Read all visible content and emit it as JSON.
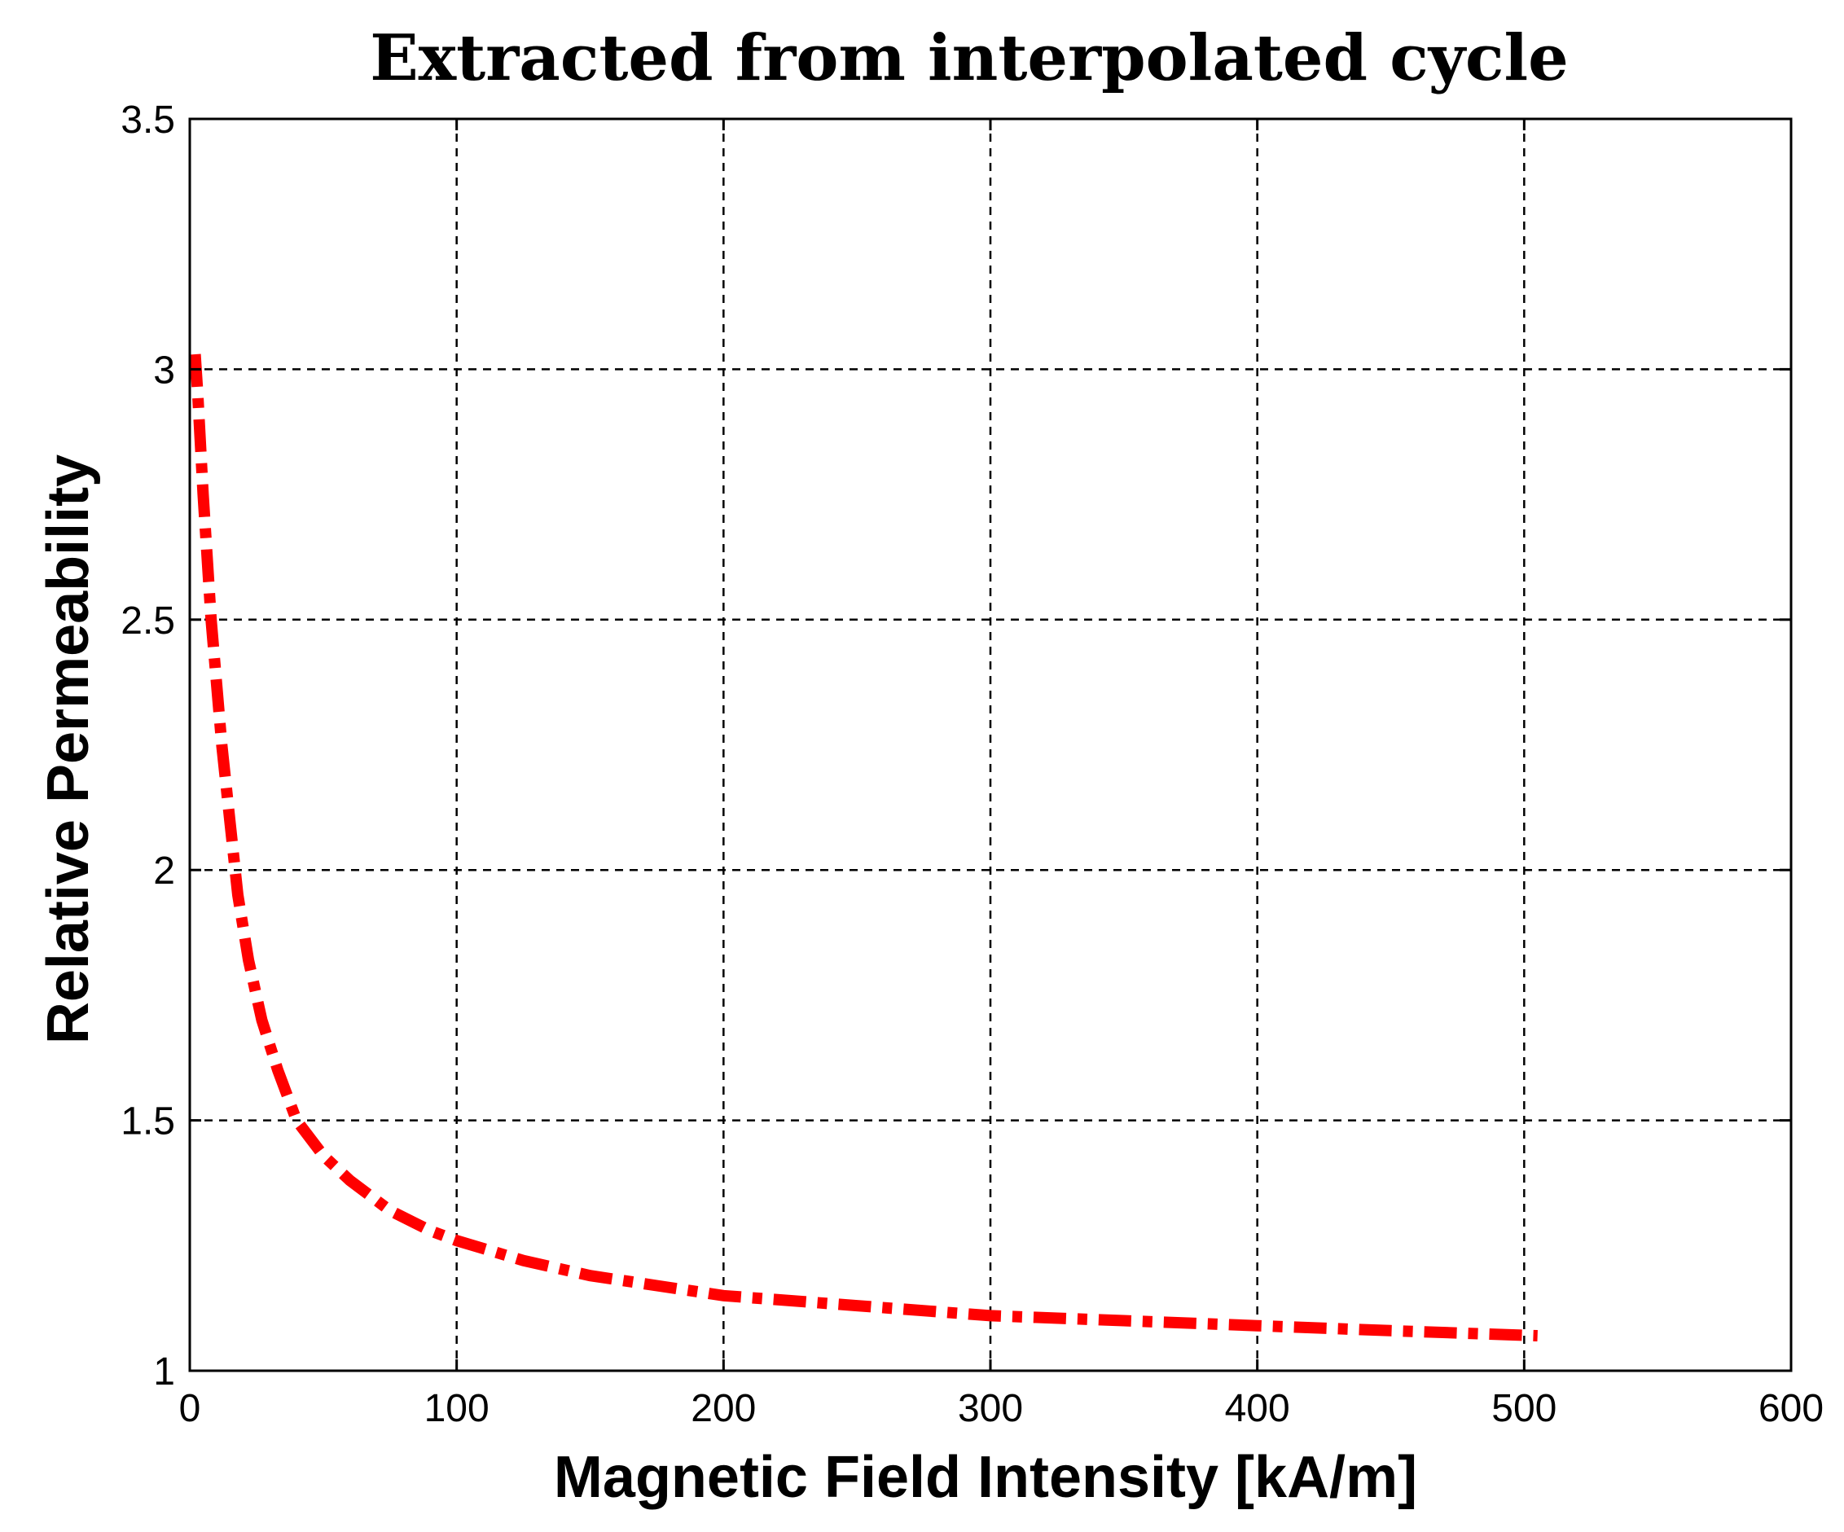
{
  "chart_data": {
    "type": "line",
    "title": "Extracted from interpolated cycle",
    "xlabel": "Magnetic Field Intensity [kA/m]",
    "ylabel": "Relative Permeability",
    "xlim": [
      0,
      600
    ],
    "ylim": [
      1,
      3.5
    ],
    "grid": true,
    "x_ticks": [
      0,
      100,
      200,
      300,
      400,
      500,
      600
    ],
    "y_ticks": [
      1,
      1.5,
      2,
      2.5,
      3,
      3.5
    ],
    "x_tick_labels": [
      "0",
      "100",
      "200",
      "300",
      "400",
      "500",
      "600"
    ],
    "y_tick_labels": [
      "1",
      "1.5",
      "2",
      "2.5",
      "3",
      "3.5"
    ],
    "series": [
      {
        "name": "relative permeability",
        "color": "#ff0000",
        "line_style": "dash-dot",
        "x": [
          2,
          3,
          5,
          8,
          12,
          15,
          18,
          22,
          27,
          33,
          40,
          50,
          60,
          75,
          90,
          100,
          125,
          150,
          175,
          200,
          250,
          300,
          350,
          400,
          450,
          505
        ],
        "y": [
          3.03,
          2.95,
          2.75,
          2.5,
          2.25,
          2.1,
          1.95,
          1.82,
          1.7,
          1.6,
          1.5,
          1.43,
          1.38,
          1.32,
          1.28,
          1.26,
          1.22,
          1.19,
          1.17,
          1.15,
          1.13,
          1.11,
          1.1,
          1.09,
          1.08,
          1.07
        ]
      }
    ]
  }
}
